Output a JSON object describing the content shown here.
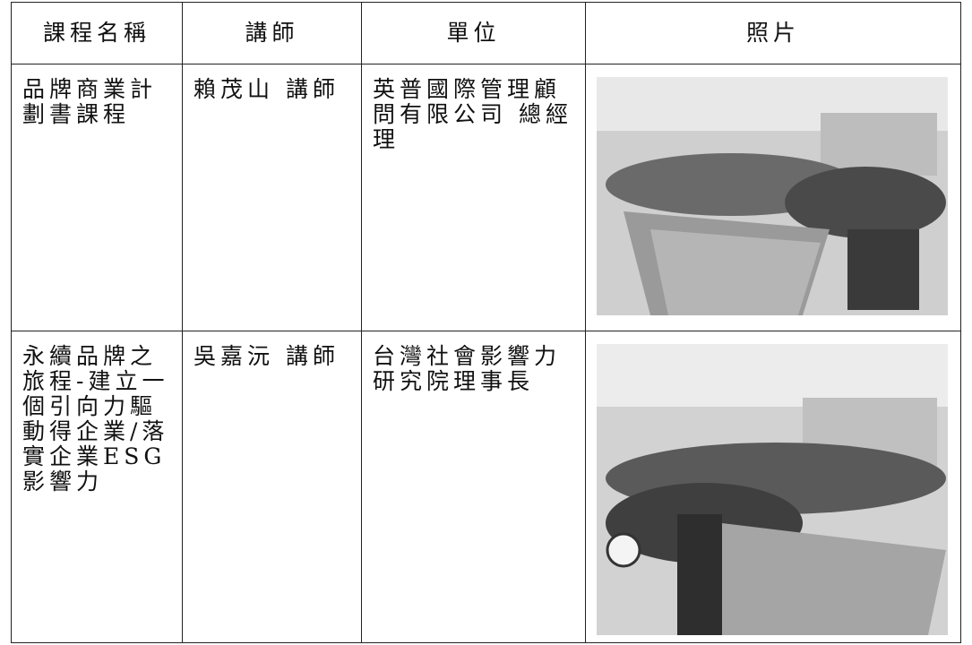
{
  "table": {
    "header": [
      "課程名稱",
      "講師",
      "單位",
      "照片"
    ],
    "rows": [
      [
        "品牌商業計劃書課程",
        "賴茂山 講師",
        "英普國際管理顧問有限公司 總經理"
      ],
      [
        "永續品牌之旅程-建立一個引向力驅動得企業/落實企業ESG影響力",
        "吳嘉沅 講師",
        "台灣社會影響力研究院理事長"
      ]
    ]
  }
}
